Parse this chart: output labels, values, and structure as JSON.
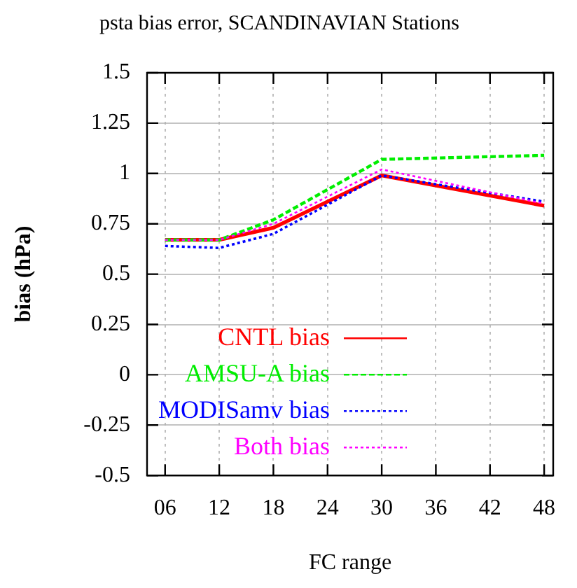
{
  "chart_data": {
    "type": "line",
    "title": "psta bias error, SCANDINAVIAN Stations",
    "xlabel": "FC range",
    "ylabel": "bias (hPa)",
    "x": [
      6,
      12,
      18,
      30,
      48
    ],
    "xlim": [
      4,
      49
    ],
    "xticks": [
      {
        "value": 6,
        "label": "06"
      },
      12,
      18,
      24,
      30,
      36,
      42,
      48
    ],
    "ylim": [
      -0.5,
      1.5
    ],
    "yticks": [
      -0.5,
      -0.25,
      0,
      0.25,
      0.5,
      0.75,
      1,
      1.25,
      1.5
    ],
    "grid": true,
    "legend": "bottom left",
    "marker": "none",
    "series": [
      {
        "name": "CNTL bias",
        "color": "#ff0000",
        "line_style": "solid",
        "values": [
          0.67,
          0.67,
          0.73,
          0.99,
          0.84
        ]
      },
      {
        "name": "AMSU-A bias",
        "color": "#00ee00",
        "line_style": "dashed",
        "values": [
          0.67,
          0.67,
          0.77,
          1.07,
          1.09
        ]
      },
      {
        "name": "MODISamv bias",
        "color": "#0000ff",
        "line_style": "dotted",
        "values": [
          0.64,
          0.63,
          0.7,
          0.99,
          0.86
        ]
      },
      {
        "name": "Both bias",
        "color": "#ff00ff",
        "line_style": "dotted",
        "values": [
          0.67,
          0.67,
          0.75,
          1.02,
          0.85
        ]
      }
    ]
  }
}
